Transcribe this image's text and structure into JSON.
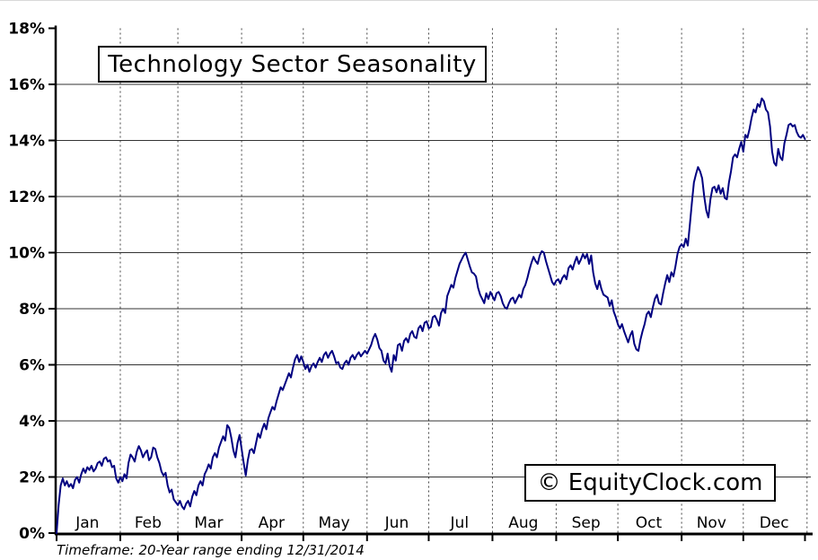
{
  "header": {
    "title": "Technology Sector Seasonality"
  },
  "watermark": {
    "text": "© EquityClock.com"
  },
  "footer": {
    "timeframe": "Timeframe: 20-Year range ending 12/31/2014"
  },
  "colors": {
    "line": "#000080",
    "axis": "#000000",
    "grid": "#333333",
    "dashed_grid": "#444444",
    "background": "#ffffff",
    "text": "#000000"
  },
  "chart_data": {
    "type": "line",
    "title": "Technology Sector Seasonality",
    "xlabel": "",
    "ylabel": "",
    "x_categories_months": [
      "Jan",
      "Feb",
      "Mar",
      "Apr",
      "May",
      "Jun",
      "Jul",
      "Aug",
      "Sep",
      "Oct",
      "Nov",
      "Dec"
    ],
    "y_tick_labels": [
      "0%",
      "2%",
      "4%",
      "6%",
      "8%",
      "10%",
      "12%",
      "14%",
      "16%",
      "18%"
    ],
    "ylim": [
      0,
      18
    ],
    "y_tick_step": 2,
    "grid": "horizontal solid lines every 2%, vertical dashed lines at month boundaries",
    "legend": "none",
    "annotations": [
      "Timeframe: 20-Year range ending 12/31/2014",
      "© EquityClock.com"
    ],
    "series": [
      {
        "name": "seasonal-average-cumulative-gain",
        "x_unit": "day-of-year (Jan 1 to Dec 31)",
        "y_unit": "percent",
        "values": [
          0,
          1,
          1.7,
          1.95,
          1.7,
          1.85,
          1.65,
          1.75,
          1.6,
          1.9,
          2,
          1.8,
          2.1,
          2.3,
          2.15,
          2.35,
          2.25,
          2.4,
          2.2,
          2.3,
          2.5,
          2.55,
          2.4,
          2.65,
          2.7,
          2.55,
          2.6,
          2.35,
          2.4,
          1.95,
          1.8,
          2,
          1.85,
          2.1,
          1.95,
          2.5,
          2.8,
          2.7,
          2.55,
          2.9,
          3.1,
          2.95,
          2.7,
          2.85,
          2.95,
          2.6,
          2.7,
          3.05,
          3,
          2.7,
          2.5,
          2.2,
          2.05,
          2.15,
          1.7,
          1.45,
          1.55,
          1.2,
          1.1,
          1,
          1.15,
          0.95,
          0.85,
          1.05,
          1.15,
          0.95,
          1.3,
          1.5,
          1.35,
          1.7,
          1.85,
          1.7,
          2.1,
          2.25,
          2.45,
          2.3,
          2.7,
          2.85,
          2.7,
          3.05,
          3.25,
          3.45,
          3.3,
          3.85,
          3.75,
          3.4,
          2.95,
          2.7,
          3.2,
          3.5,
          3,
          2.5,
          2.05,
          2.6,
          2.95,
          3,
          2.85,
          3.2,
          3.55,
          3.4,
          3.7,
          3.9,
          3.7,
          4.1,
          4.3,
          4.5,
          4.4,
          4.7,
          4.95,
          5.2,
          5.1,
          5.3,
          5.5,
          5.7,
          5.55,
          5.9,
          6.2,
          6.35,
          6.1,
          6.3,
          6.1,
          5.85,
          6,
          5.75,
          5.95,
          6.05,
          5.9,
          6.1,
          6.25,
          6.1,
          6.35,
          6.45,
          6.25,
          6.4,
          6.5,
          6.3,
          6.05,
          6.1,
          5.9,
          5.85,
          6.05,
          6.15,
          6,
          6.25,
          6.35,
          6.2,
          6.35,
          6.45,
          6.3,
          6.4,
          6.5,
          6.4,
          6.55,
          6.7,
          6.95,
          7.1,
          6.9,
          6.6,
          6.5,
          6.15,
          6.05,
          6.4,
          5.95,
          5.75,
          6.35,
          6.15,
          6.7,
          6.75,
          6.5,
          6.85,
          6.95,
          6.8,
          7.1,
          7.2,
          7,
          6.95,
          7.3,
          7.4,
          7.2,
          7.5,
          7.55,
          7.3,
          7.35,
          7.7,
          7.75,
          7.6,
          7.4,
          7.85,
          8,
          7.85,
          8.45,
          8.65,
          8.85,
          8.75,
          9.1,
          9.35,
          9.6,
          9.75,
          9.9,
          10,
          9.75,
          9.5,
          9.3,
          9.25,
          9.15,
          8.75,
          8.5,
          8.35,
          8.2,
          8.55,
          8.35,
          8.6,
          8.45,
          8.3,
          8.55,
          8.6,
          8.45,
          8.2,
          8.05,
          8,
          8.2,
          8.35,
          8.4,
          8.2,
          8.35,
          8.5,
          8.4,
          8.7,
          8.85,
          9.1,
          9.4,
          9.65,
          9.85,
          9.7,
          9.6,
          9.9,
          10.05,
          10,
          9.7,
          9.45,
          9.2,
          8.95,
          8.85,
          9,
          9.05,
          8.9,
          9.1,
          9.2,
          9.05,
          9.45,
          9.55,
          9.4,
          9.65,
          9.85,
          9.6,
          9.75,
          9.95,
          9.8,
          9.95,
          9.6,
          9.9,
          9.3,
          8.9,
          8.7,
          9,
          8.7,
          8.5,
          8.45,
          8.4,
          8.1,
          8.3,
          7.9,
          7.7,
          7.45,
          7.3,
          7.45,
          7.2,
          7,
          6.8,
          7.05,
          7.2,
          6.75,
          6.55,
          6.5,
          6.9,
          7.2,
          7.45,
          7.8,
          7.9,
          7.7,
          8.05,
          8.35,
          8.5,
          8.2,
          8.15,
          8.55,
          8.9,
          9.2,
          8.95,
          9.3,
          9.15,
          9.5,
          9.95,
          10.2,
          10.3,
          10.2,
          10.5,
          10.25,
          11,
          11.8,
          12.5,
          12.8,
          13.05,
          12.9,
          12.65,
          12,
          11.5,
          11.25,
          11.9,
          12.3,
          12.35,
          12.15,
          12.4,
          12.1,
          12.3,
          11.95,
          11.9,
          12.5,
          12.9,
          13.4,
          13.5,
          13.4,
          13.7,
          13.95,
          13.6,
          14.2,
          14.1,
          14.4,
          14.8,
          15.1,
          15,
          15.3,
          15.2,
          15.5,
          15.4,
          15.1,
          15,
          14.5,
          13.6,
          13.2,
          13.1,
          13.7,
          13.4,
          13.3,
          13.9,
          14.2,
          14.55,
          14.6,
          14.5,
          14.55,
          14.3,
          14.15,
          14.1,
          14.2,
          14.05
        ]
      }
    ]
  }
}
